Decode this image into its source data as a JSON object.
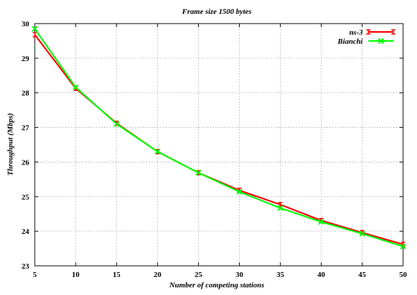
{
  "chart_data": {
    "type": "line",
    "title": "Frame size 1500 bytes",
    "xlabel": "Number of competing stations",
    "ylabel": "Throughput (Mbps)",
    "xlim": [
      5,
      50
    ],
    "ylim": [
      23,
      30
    ],
    "xticks": [
      5,
      10,
      15,
      20,
      25,
      30,
      35,
      40,
      45,
      50
    ],
    "yticks": [
      23,
      24,
      25,
      26,
      27,
      28,
      29,
      30
    ],
    "grid": true,
    "legend_position": "top-right",
    "x": [
      5,
      10,
      15,
      20,
      25,
      30,
      35,
      40,
      45,
      50
    ],
    "series": [
      {
        "name": "ns-3",
        "color": "#ff0000",
        "marker": "errorbar",
        "values": [
          29.68,
          28.13,
          27.12,
          26.3,
          25.69,
          25.18,
          24.77,
          24.31,
          23.96,
          23.62
        ]
      },
      {
        "name": "Bianchi",
        "color": "#00ff00",
        "marker": "x",
        "values": [
          29.85,
          28.16,
          27.1,
          26.3,
          25.69,
          25.14,
          24.67,
          24.27,
          23.93,
          23.56
        ]
      }
    ]
  }
}
